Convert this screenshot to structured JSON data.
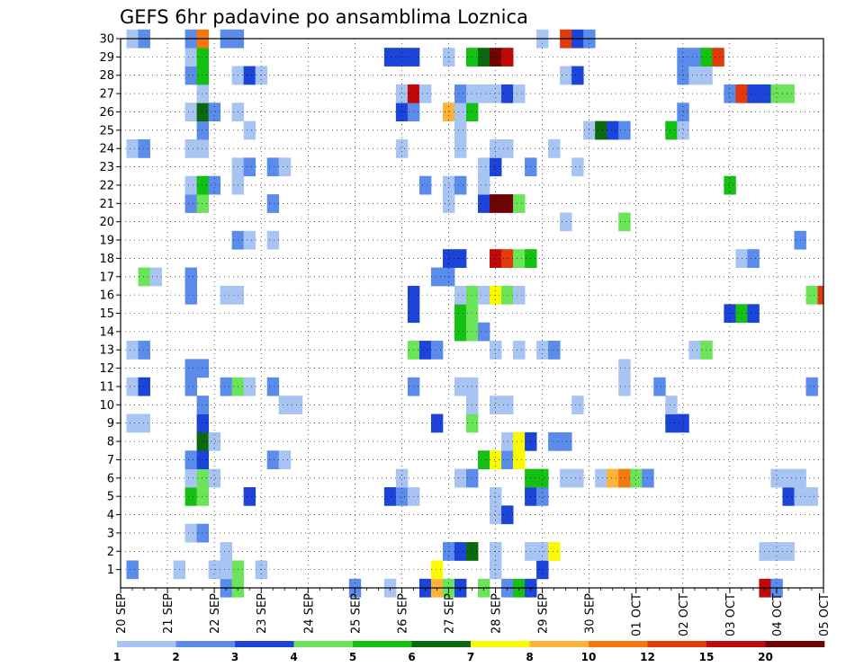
{
  "chart_data": {
    "type": "heatmap",
    "title": "GEFS 6hr padavine po ansamblima Loznica",
    "xlabel": "",
    "ylabel": "",
    "x_ticks": [
      "20 SEP",
      "21 SEP",
      "22 SEP",
      "23 SEP",
      "24 SEP",
      "25 SEP",
      "26 SEP",
      "27 SEP",
      "28 SEP",
      "29 SEP",
      "30 SEP",
      "01 OCT",
      "02 OCT",
      "03 OCT",
      "04 OCT",
      "05 OCT"
    ],
    "y_ticks": [
      1,
      2,
      3,
      4,
      5,
      6,
      7,
      8,
      9,
      10,
      11,
      12,
      13,
      14,
      15,
      16,
      17,
      18,
      19,
      20,
      21,
      22,
      23,
      24,
      25,
      26,
      27,
      28,
      29,
      30
    ],
    "x_range_steps": [
      0,
      60
    ],
    "y_range": [
      0,
      30
    ],
    "steps_per_day": 4,
    "grid": true,
    "colorbar": {
      "labels": [
        "1",
        "2",
        "3",
        "4",
        "5",
        "6",
        "7",
        "8",
        "10",
        "12",
        "15",
        "20"
      ],
      "colors": [
        "#a8c4f2",
        "#5b8cec",
        "#1c44d8",
        "#6ce45a",
        "#14c014",
        "#0c680c",
        "#fafa00",
        "#fab43c",
        "#f4780c",
        "#e23a0a",
        "#be0a0a",
        "#6e0404"
      ]
    },
    "cells": [
      [
        1,
        1,
        1
      ],
      [
        5,
        1,
        0
      ],
      [
        8,
        1,
        0
      ],
      [
        9,
        0,
        1
      ],
      [
        9,
        1,
        1
      ],
      [
        10,
        0,
        3
      ],
      [
        10,
        1,
        3
      ],
      [
        20,
        0,
        1
      ],
      [
        23,
        0,
        0
      ],
      [
        26,
        0,
        2
      ],
      [
        27,
        0,
        7
      ],
      [
        28,
        0,
        3
      ],
      [
        29,
        0,
        2
      ],
      [
        31,
        0,
        3
      ],
      [
        33,
        0,
        1
      ],
      [
        34,
        0,
        4
      ],
      [
        35,
        0,
        2
      ],
      [
        36,
        1,
        0
      ],
      [
        55,
        0,
        10
      ],
      [
        56,
        0,
        1
      ],
      [
        9,
        1,
        0
      ],
      [
        12,
        1,
        0
      ],
      [
        27,
        1,
        6
      ],
      [
        32,
        1,
        0
      ],
      [
        36,
        1,
        2
      ],
      [
        9,
        2,
        0
      ],
      [
        28,
        2,
        1
      ],
      [
        29,
        2,
        2
      ],
      [
        30,
        2,
        5
      ],
      [
        32,
        2,
        0
      ],
      [
        35,
        2,
        0
      ],
      [
        36,
        2,
        0
      ],
      [
        37,
        2,
        6
      ],
      [
        55,
        2,
        0
      ],
      [
        56,
        2,
        0
      ],
      [
        57,
        2,
        0
      ],
      [
        6,
        3,
        0
      ],
      [
        7,
        3,
        1
      ],
      [
        32,
        4,
        0
      ],
      [
        33,
        4,
        2
      ],
      [
        6,
        5,
        4
      ],
      [
        7,
        5,
        3
      ],
      [
        11,
        5,
        2
      ],
      [
        23,
        5,
        2
      ],
      [
        24,
        5,
        1
      ],
      [
        25,
        5,
        0
      ],
      [
        32,
        5,
        0
      ],
      [
        35,
        5,
        2
      ],
      [
        36,
        5,
        1
      ],
      [
        57,
        5,
        2
      ],
      [
        58,
        5,
        0
      ],
      [
        59,
        5,
        0
      ],
      [
        6,
        6,
        0
      ],
      [
        7,
        6,
        3
      ],
      [
        8,
        6,
        0
      ],
      [
        24,
        6,
        0
      ],
      [
        29,
        6,
        0
      ],
      [
        30,
        6,
        1
      ],
      [
        35,
        6,
        4
      ],
      [
        36,
        6,
        4
      ],
      [
        38,
        6,
        0
      ],
      [
        39,
        6,
        0
      ],
      [
        41,
        6,
        0
      ],
      [
        42,
        6,
        7
      ],
      [
        43,
        6,
        8
      ],
      [
        44,
        6,
        3
      ],
      [
        45,
        6,
        1
      ],
      [
        56,
        6,
        0
      ],
      [
        57,
        6,
        0
      ],
      [
        58,
        6,
        0
      ],
      [
        6,
        7,
        1
      ],
      [
        7,
        7,
        2
      ],
      [
        13,
        7,
        1
      ],
      [
        14,
        7,
        0
      ],
      [
        31,
        7,
        4
      ],
      [
        32,
        7,
        6
      ],
      [
        33,
        7,
        1
      ],
      [
        34,
        7,
        6
      ],
      [
        7,
        8,
        5
      ],
      [
        8,
        8,
        0
      ],
      [
        33,
        8,
        0
      ],
      [
        34,
        8,
        6
      ],
      [
        35,
        8,
        2
      ],
      [
        37,
        8,
        1
      ],
      [
        38,
        8,
        1
      ],
      [
        1,
        9,
        0
      ],
      [
        2,
        9,
        0
      ],
      [
        7,
        9,
        2
      ],
      [
        27,
        9,
        2
      ],
      [
        30,
        9,
        3
      ],
      [
        47,
        9,
        2
      ],
      [
        48,
        9,
        2
      ],
      [
        7,
        10,
        1
      ],
      [
        14,
        10,
        0
      ],
      [
        15,
        10,
        0
      ],
      [
        30,
        10,
        0
      ],
      [
        32,
        10,
        0
      ],
      [
        33,
        10,
        0
      ],
      [
        39,
        10,
        0
      ],
      [
        47,
        10,
        0
      ],
      [
        1,
        11,
        0
      ],
      [
        2,
        11,
        2
      ],
      [
        6,
        11,
        1
      ],
      [
        9,
        11,
        1
      ],
      [
        10,
        11,
        3
      ],
      [
        11,
        11,
        0
      ],
      [
        13,
        11,
        1
      ],
      [
        25,
        11,
        1
      ],
      [
        29,
        11,
        0
      ],
      [
        30,
        11,
        0
      ],
      [
        43,
        11,
        0
      ],
      [
        46,
        11,
        1
      ],
      [
        59,
        11,
        1
      ],
      [
        6,
        12,
        1
      ],
      [
        7,
        12,
        1
      ],
      [
        43,
        12,
        0
      ],
      [
        1,
        13,
        0
      ],
      [
        2,
        13,
        1
      ],
      [
        25,
        13,
        3
      ],
      [
        26,
        13,
        2
      ],
      [
        27,
        13,
        1
      ],
      [
        32,
        13,
        0
      ],
      [
        34,
        13,
        0
      ],
      [
        36,
        13,
        0
      ],
      [
        37,
        13,
        1
      ],
      [
        49,
        13,
        0
      ],
      [
        50,
        13,
        3
      ],
      [
        29,
        14,
        4
      ],
      [
        30,
        14,
        3
      ],
      [
        31,
        14,
        1
      ],
      [
        25,
        15,
        2
      ],
      [
        29,
        15,
        4
      ],
      [
        30,
        15,
        3
      ],
      [
        52,
        15,
        2
      ],
      [
        53,
        15,
        4
      ],
      [
        54,
        15,
        2
      ],
      [
        6,
        16,
        1
      ],
      [
        9,
        16,
        0
      ],
      [
        10,
        16,
        0
      ],
      [
        25,
        16,
        2
      ],
      [
        29,
        16,
        0
      ],
      [
        30,
        16,
        3
      ],
      [
        31,
        16,
        0
      ],
      [
        32,
        16,
        6
      ],
      [
        33,
        16,
        3
      ],
      [
        34,
        16,
        0
      ],
      [
        59,
        16,
        3
      ],
      [
        60,
        16,
        9
      ],
      [
        2,
        17,
        3
      ],
      [
        3,
        17,
        0
      ],
      [
        6,
        17,
        1
      ],
      [
        27,
        17,
        1
      ],
      [
        28,
        17,
        1
      ],
      [
        28,
        18,
        2
      ],
      [
        29,
        18,
        2
      ],
      [
        32,
        18,
        10
      ],
      [
        33,
        18,
        9
      ],
      [
        34,
        18,
        3
      ],
      [
        35,
        18,
        4
      ],
      [
        53,
        18,
        0
      ],
      [
        54,
        18,
        1
      ],
      [
        10,
        19,
        1
      ],
      [
        11,
        19,
        0
      ],
      [
        13,
        19,
        0
      ],
      [
        58,
        19,
        1
      ],
      [
        38,
        20,
        0
      ],
      [
        43,
        20,
        3
      ],
      [
        6,
        21,
        1
      ],
      [
        7,
        21,
        3
      ],
      [
        13,
        21,
        1
      ],
      [
        28,
        21,
        0
      ],
      [
        31,
        21,
        2
      ],
      [
        32,
        21,
        11
      ],
      [
        33,
        21,
        11
      ],
      [
        34,
        21,
        3
      ],
      [
        6,
        22,
        0
      ],
      [
        7,
        22,
        4
      ],
      [
        8,
        22,
        1
      ],
      [
        10,
        22,
        0
      ],
      [
        26,
        22,
        1
      ],
      [
        28,
        22,
        0
      ],
      [
        29,
        22,
        1
      ],
      [
        31,
        22,
        0
      ],
      [
        52,
        22,
        4
      ],
      [
        10,
        23,
        0
      ],
      [
        11,
        23,
        1
      ],
      [
        13,
        23,
        1
      ],
      [
        14,
        23,
        0
      ],
      [
        31,
        23,
        0
      ],
      [
        32,
        23,
        2
      ],
      [
        35,
        23,
        1
      ],
      [
        39,
        23,
        0
      ],
      [
        1,
        24,
        0
      ],
      [
        2,
        24,
        1
      ],
      [
        6,
        24,
        0
      ],
      [
        7,
        24,
        0
      ],
      [
        24,
        24,
        0
      ],
      [
        29,
        24,
        0
      ],
      [
        32,
        24,
        0
      ],
      [
        33,
        24,
        0
      ],
      [
        37,
        24,
        0
      ],
      [
        7,
        25,
        1
      ],
      [
        11,
        25,
        0
      ],
      [
        29,
        25,
        0
      ],
      [
        40,
        25,
        0
      ],
      [
        41,
        25,
        5
      ],
      [
        42,
        25,
        2
      ],
      [
        43,
        25,
        1
      ],
      [
        47,
        25,
        4
      ],
      [
        48,
        25,
        0
      ],
      [
        6,
        26,
        0
      ],
      [
        7,
        26,
        5
      ],
      [
        8,
        26,
        1
      ],
      [
        10,
        26,
        0
      ],
      [
        24,
        26,
        2
      ],
      [
        25,
        26,
        1
      ],
      [
        28,
        26,
        7
      ],
      [
        29,
        26,
        0
      ],
      [
        30,
        26,
        4
      ],
      [
        48,
        26,
        1
      ],
      [
        7,
        27,
        0
      ],
      [
        24,
        27,
        0
      ],
      [
        25,
        27,
        10
      ],
      [
        26,
        27,
        0
      ],
      [
        29,
        27,
        1
      ],
      [
        30,
        27,
        0
      ],
      [
        31,
        27,
        0
      ],
      [
        32,
        27,
        0
      ],
      [
        33,
        27,
        2
      ],
      [
        34,
        27,
        0
      ],
      [
        52,
        27,
        1
      ],
      [
        53,
        27,
        9
      ],
      [
        54,
        27,
        2
      ],
      [
        55,
        27,
        2
      ],
      [
        56,
        27,
        3
      ],
      [
        57,
        27,
        3
      ],
      [
        6,
        28,
        1
      ],
      [
        7,
        28,
        4
      ],
      [
        10,
        28,
        0
      ],
      [
        11,
        28,
        2
      ],
      [
        12,
        28,
        0
      ],
      [
        38,
        28,
        0
      ],
      [
        39,
        28,
        2
      ],
      [
        48,
        28,
        1
      ],
      [
        49,
        28,
        0
      ],
      [
        50,
        28,
        0
      ],
      [
        6,
        29,
        0
      ],
      [
        7,
        29,
        4
      ],
      [
        23,
        29,
        2
      ],
      [
        24,
        29,
        2
      ],
      [
        25,
        29,
        2
      ],
      [
        28,
        29,
        0
      ],
      [
        30,
        29,
        4
      ],
      [
        31,
        29,
        5
      ],
      [
        32,
        29,
        11
      ],
      [
        33,
        29,
        10
      ],
      [
        48,
        29,
        1
      ],
      [
        49,
        29,
        1
      ],
      [
        50,
        29,
        4
      ],
      [
        51,
        29,
        9
      ],
      [
        1,
        30,
        0
      ],
      [
        2,
        30,
        1
      ],
      [
        6,
        30,
        1
      ],
      [
        7,
        30,
        8
      ],
      [
        9,
        30,
        1
      ],
      [
        10,
        30,
        1
      ],
      [
        36,
        30,
        0
      ],
      [
        38,
        30,
        9
      ],
      [
        39,
        30,
        2
      ],
      [
        40,
        30,
        1
      ]
    ]
  }
}
